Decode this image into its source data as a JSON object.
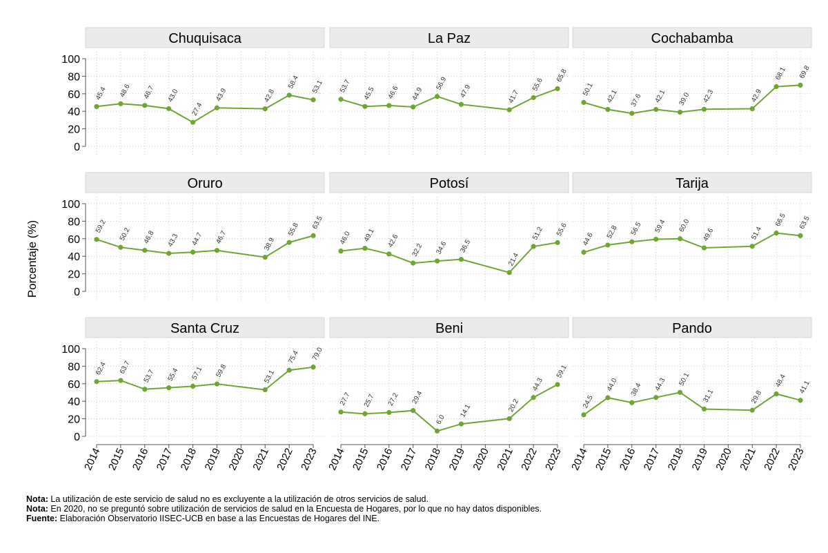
{
  "chart_data": {
    "type": "line",
    "ylabel": "Porcentaje (%)",
    "ylim": [
      0,
      100
    ],
    "yticks": [
      0,
      20,
      40,
      60,
      80,
      100
    ],
    "categories": [
      "2014",
      "2015",
      "2016",
      "2017",
      "2018",
      "2019",
      "2020",
      "2021",
      "2022",
      "2023"
    ],
    "line_color": "#70a532",
    "panel_header_color": "#ebebeb",
    "series": [
      {
        "name": "Chuquisaca",
        "values": [
          45.4,
          48.6,
          46.7,
          43.0,
          27.4,
          43.9,
          null,
          42.8,
          58.4,
          53.1
        ],
        "labels": [
          "45.4",
          "48.6",
          "46.7",
          "43.0",
          "27.4",
          "43.9",
          "",
          "42.8",
          "58.4",
          "53.1"
        ]
      },
      {
        "name": "La Paz",
        "values": [
          53.7,
          45.5,
          46.6,
          44.9,
          56.9,
          47.9,
          null,
          41.7,
          55.6,
          65.8
        ],
        "labels": [
          "53.7",
          "45.5",
          "46.6",
          "44.9",
          "56.9",
          "47.9",
          "",
          "41.7",
          "55.6",
          "65.8"
        ]
      },
      {
        "name": "Cochabamba",
        "values": [
          50.1,
          42.1,
          37.6,
          42.1,
          39.0,
          42.3,
          null,
          42.9,
          68.1,
          69.8
        ],
        "labels": [
          "50.1",
          "42.1",
          "37.6",
          "42.1",
          "39.0",
          "42.3",
          "",
          "42.9",
          "68.1",
          "69.8"
        ]
      },
      {
        "name": "Oruro",
        "values": [
          59.2,
          50.2,
          46.8,
          43.3,
          44.7,
          46.7,
          null,
          38.9,
          55.8,
          63.5
        ],
        "labels": [
          "59.2",
          "50.2",
          "46.8",
          "43.3",
          "44.7",
          "46.7",
          "",
          "38.9",
          "55.8",
          "63.5"
        ]
      },
      {
        "name": "Potosí",
        "values": [
          46.0,
          49.1,
          42.6,
          32.2,
          34.6,
          36.5,
          null,
          21.4,
          51.2,
          55.6
        ],
        "labels": [
          "46.0",
          "49.1",
          "42.6",
          "32.2",
          "34.6",
          "36.5",
          "",
          "21.4",
          "51.2",
          "55.6"
        ]
      },
      {
        "name": "Tarija",
        "values": [
          44.6,
          52.8,
          56.5,
          59.4,
          60.0,
          49.6,
          null,
          51.4,
          66.5,
          63.5
        ],
        "labels": [
          "44.6",
          "52.8",
          "56.5",
          "59.4",
          "60.0",
          "49.6",
          "",
          "51.4",
          "66.5",
          "63.5"
        ]
      },
      {
        "name": "Santa Cruz",
        "values": [
          62.4,
          63.7,
          53.7,
          55.4,
          57.1,
          59.8,
          null,
          53.1,
          75.4,
          79.0
        ],
        "labels": [
          "62.4",
          "63.7",
          "53.7",
          "55.4",
          "57.1",
          "59.8",
          "",
          "53.1",
          "75.4",
          "79.0"
        ]
      },
      {
        "name": "Beni",
        "values": [
          27.7,
          25.7,
          27.2,
          29.4,
          6.0,
          14.1,
          null,
          20.2,
          44.3,
          59.1
        ],
        "labels": [
          "27.7",
          "25.7",
          "27.2",
          "29.4",
          "6.0",
          "14.1",
          "",
          "20.2",
          "44.3",
          "59.1"
        ]
      },
      {
        "name": "Pando",
        "values": [
          24.5,
          44.0,
          38.4,
          44.3,
          50.1,
          31.1,
          null,
          29.8,
          48.4,
          41.1
        ],
        "labels": [
          "24.5",
          "44.0",
          "38.4",
          "44.3",
          "50.1",
          "31.1",
          "",
          "29.8",
          "48.4",
          "41.1"
        ]
      }
    ]
  },
  "notes": [
    {
      "label": "Nota:",
      "text": " La utilización de este servicio de salud no es excluyente a la utilización de otros servicios de salud."
    },
    {
      "label": "Nota:",
      "text": " En 2020, no se preguntó sobre utilización de servicios de salud en la Encuesta de Hogares, por lo que no hay datos disponibles."
    },
    {
      "label": "Fuente:",
      "text": " Elaboración Observatorio IISEC-UCB en base a las Encuestas de Hogares del INE."
    }
  ]
}
